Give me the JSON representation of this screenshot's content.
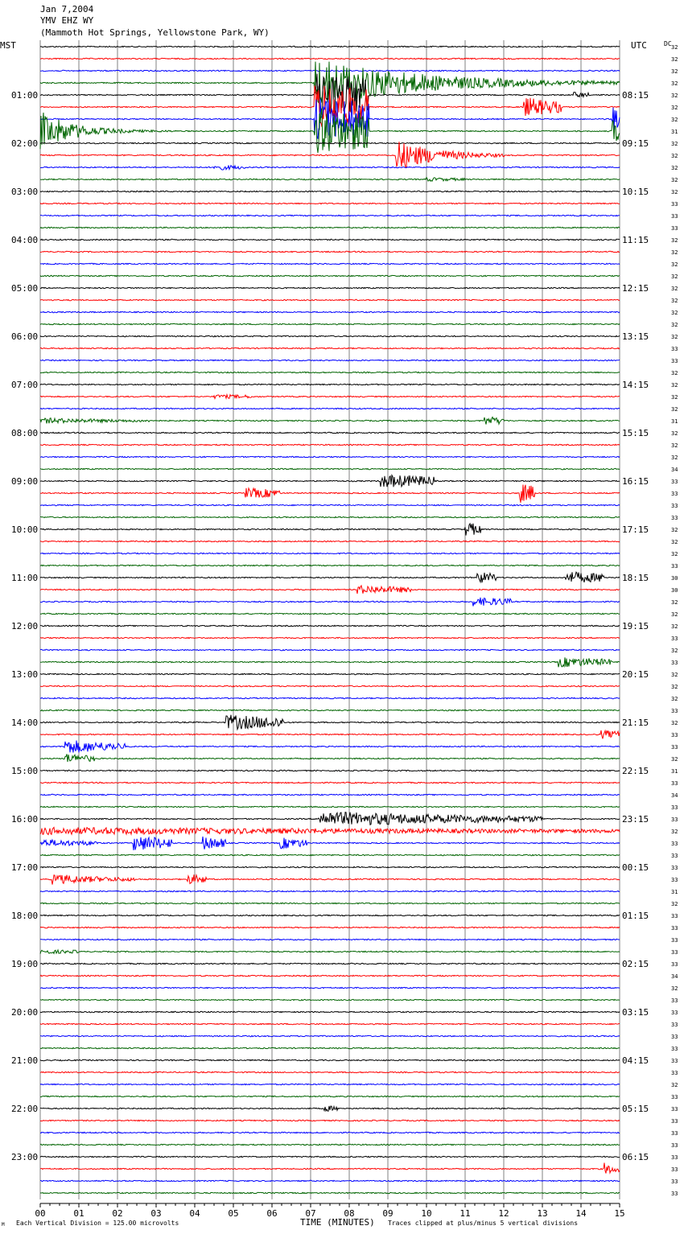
{
  "header": {
    "date": "Jan 7,2004",
    "station": "YMV EHZ WY",
    "location": "(Mammoth Hot Springs, Yellowstone Park, WY)"
  },
  "left_axis_title": "MST",
  "right_axis_title": "UTC",
  "dc_column_title": "DC",
  "footer": {
    "scale_note": "Each Vertical Division =  125.00 microvolts",
    "xlabel": "TIME (MINUTES)",
    "clip_note": "Traces clipped at plus/minus 5 vertical divisions",
    "corner_mark": "M"
  },
  "colors": {
    "trace_cycle": [
      "#000000",
      "#ff0000",
      "#0000ff",
      "#006400"
    ],
    "gridline": "#808080",
    "text": "#000000"
  },
  "chart_data": {
    "type": "line",
    "title": "Jan 7,2004",
    "subtitle": "YMV EHZ WY (Mammoth Hot Springs, Yellowstone Park, WY)",
    "xlabel": "TIME (MINUTES)",
    "ylabel": "MST",
    "xlim": [
      0,
      15
    ],
    "x_ticks": [
      "00",
      "01",
      "02",
      "03",
      "04",
      "05",
      "06",
      "07",
      "08",
      "09",
      "10",
      "11",
      "12",
      "13",
      "14",
      "15"
    ],
    "n_traces": 96,
    "minutes_per_trace": 15,
    "left_hour_labels": [
      "01:00",
      "02:00",
      "03:00",
      "04:00",
      "05:00",
      "06:00",
      "07:00",
      "08:00",
      "09:00",
      "10:00",
      "11:00",
      "12:00",
      "13:00",
      "14:00",
      "15:00",
      "16:00",
      "17:00",
      "18:00",
      "19:00",
      "20:00",
      "21:00",
      "22:00",
      "23:00"
    ],
    "right_hour_labels": [
      "08:15",
      "09:15",
      "10:15",
      "11:15",
      "12:15",
      "13:15",
      "14:15",
      "15:15",
      "16:15",
      "17:15",
      "18:15",
      "19:15",
      "20:15",
      "21:15",
      "22:15",
      "23:15",
      "00:15",
      "01:15",
      "02:15",
      "03:15",
      "04:15",
      "05:15",
      "06:15"
    ],
    "dc_offsets": [
      "32",
      "32",
      "32",
      "32",
      "32",
      "32",
      "32",
      "31",
      "32",
      "32",
      "32",
      "32",
      "32",
      "33",
      "33",
      "33",
      "32",
      "32",
      "32",
      "32",
      "32",
      "32",
      "32",
      "32",
      "32",
      "33",
      "33",
      "32",
      "32",
      "32",
      "32",
      "31",
      "32",
      "32",
      "32",
      "34",
      "33",
      "33",
      "33",
      "33",
      "32",
      "32",
      "32",
      "33",
      "30",
      "30",
      "32",
      "32",
      "32",
      "33",
      "32",
      "33",
      "32",
      "32",
      "32",
      "33",
      "32",
      "33",
      "33",
      "32",
      "31",
      "33",
      "34",
      "33",
      "33",
      "32",
      "33",
      "33",
      "33",
      "33",
      "31",
      "32",
      "33",
      "33",
      "33",
      "33",
      "33",
      "34",
      "32",
      "33",
      "33",
      "33",
      "33",
      "33",
      "33",
      "33",
      "32",
      "33",
      "33",
      "33",
      "33",
      "33",
      "33",
      "33",
      "33",
      "33"
    ],
    "events": [
      {
        "trace": 3,
        "start": 7.1,
        "end": 15,
        "amp": 32,
        "decay": 2.5
      },
      {
        "trace": 4,
        "start": 7.1,
        "end": 8.5,
        "amp": 28,
        "decay": 5
      },
      {
        "trace": 4,
        "start": 13.8,
        "end": 14.2,
        "amp": 3,
        "decay": 1
      },
      {
        "trace": 5,
        "start": 7.1,
        "end": 8.5,
        "amp": 28,
        "decay": 5
      },
      {
        "trace": 5,
        "start": 12.5,
        "end": 13.5,
        "amp": 12,
        "decay": 1.5
      },
      {
        "trace": 6,
        "start": 7.1,
        "end": 8.5,
        "amp": 28,
        "decay": 5
      },
      {
        "trace": 6,
        "start": 14.8,
        "end": 15,
        "amp": 16,
        "decay": 0.3
      },
      {
        "trace": 7,
        "start": 0,
        "end": 3.5,
        "amp": 25,
        "decay": 0.8
      },
      {
        "trace": 7,
        "start": 7.1,
        "end": 8.5,
        "amp": 28,
        "decay": 5
      },
      {
        "trace": 7,
        "start": 14.8,
        "end": 15,
        "amp": 18,
        "decay": 0.3
      },
      {
        "trace": 9,
        "start": 9.2,
        "end": 12,
        "amp": 20,
        "decay": 1
      },
      {
        "trace": 10,
        "start": 4.5,
        "end": 5.3,
        "amp": 3,
        "decay": 1
      },
      {
        "trace": 11,
        "start": 10,
        "end": 11,
        "amp": 2,
        "decay": 1
      },
      {
        "trace": 29,
        "start": 4.5,
        "end": 5.5,
        "amp": 2,
        "decay": 2
      },
      {
        "trace": 31,
        "start": 0,
        "end": 3,
        "amp": 3,
        "decay": 2
      },
      {
        "trace": 31,
        "start": 11.5,
        "end": 12,
        "amp": 5,
        "decay": 1
      },
      {
        "trace": 36,
        "start": 8.8,
        "end": 10.2,
        "amp": 8,
        "decay": 3
      },
      {
        "trace": 37,
        "start": 5.3,
        "end": 6.2,
        "amp": 6,
        "decay": 2
      },
      {
        "trace": 37,
        "start": 12.4,
        "end": 12.8,
        "amp": 12,
        "decay": 1
      },
      {
        "trace": 40,
        "start": 11,
        "end": 11.4,
        "amp": 8,
        "decay": 1
      },
      {
        "trace": 44,
        "start": 11.3,
        "end": 11.8,
        "amp": 7,
        "decay": 1
      },
      {
        "trace": 44,
        "start": 13.6,
        "end": 14.6,
        "amp": 7,
        "decay": 2
      },
      {
        "trace": 45,
        "start": 8.2,
        "end": 9.6,
        "amp": 5,
        "decay": 2
      },
      {
        "trace": 46,
        "start": 11.2,
        "end": 12.2,
        "amp": 5,
        "decay": 2
      },
      {
        "trace": 51,
        "start": 13.4,
        "end": 14.8,
        "amp": 6,
        "decay": 2
      },
      {
        "trace": 56,
        "start": 4.8,
        "end": 6.3,
        "amp": 9,
        "decay": 3
      },
      {
        "trace": 57,
        "start": 14.5,
        "end": 15,
        "amp": 5,
        "decay": 1
      },
      {
        "trace": 58,
        "start": 0.6,
        "end": 2.2,
        "amp": 9,
        "decay": 1.5
      },
      {
        "trace": 59,
        "start": 0.6,
        "end": 1.4,
        "amp": 6,
        "decay": 1
      },
      {
        "trace": 64,
        "start": 7.2,
        "end": 13,
        "amp": 9,
        "decay": 5
      },
      {
        "trace": 65,
        "start": 0,
        "end": 15,
        "amp": 4,
        "decay": 15
      },
      {
        "trace": 66,
        "start": 2.4,
        "end": 3.4,
        "amp": 10,
        "decay": 1.5
      },
      {
        "trace": 66,
        "start": 4.2,
        "end": 4.8,
        "amp": 8,
        "decay": 1
      },
      {
        "trace": 66,
        "start": 6.2,
        "end": 6.9,
        "amp": 7,
        "decay": 1
      },
      {
        "trace": 66,
        "start": 0,
        "end": 1.5,
        "amp": 4,
        "decay": 2
      },
      {
        "trace": 69,
        "start": 0.3,
        "end": 2.5,
        "amp": 6,
        "decay": 1.5
      },
      {
        "trace": 69,
        "start": 3.8,
        "end": 4.3,
        "amp": 6,
        "decay": 1
      },
      {
        "trace": 75,
        "start": 0,
        "end": 1,
        "amp": 2,
        "decay": 2
      },
      {
        "trace": 88,
        "start": 7.3,
        "end": 7.7,
        "amp": 4,
        "decay": 0.5
      },
      {
        "trace": 93,
        "start": 14.6,
        "end": 15,
        "amp": 7,
        "decay": 0.5
      }
    ]
  }
}
